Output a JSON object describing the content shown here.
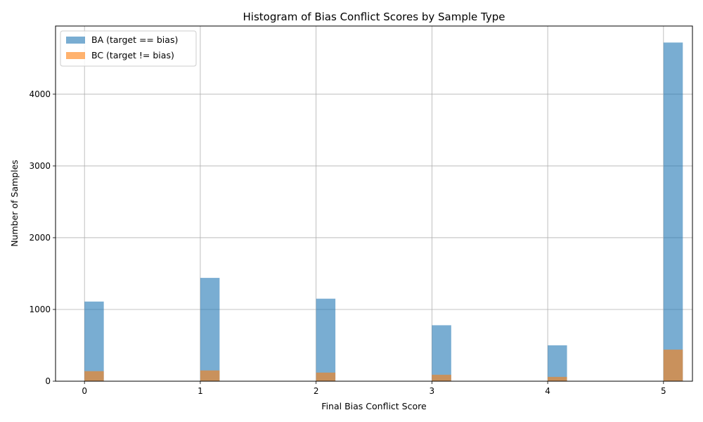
{
  "chart_data": {
    "type": "bar",
    "title": "Histogram of Bias Conflict Scores by Sample Type",
    "xlabel": "Final Bias Conflict Score",
    "ylabel": "Number of Samples",
    "xlim": [
      -0.25,
      5.25
    ],
    "ylim": [
      0,
      4950
    ],
    "xticks": [
      0,
      1,
      2,
      3,
      4,
      5
    ],
    "yticks": [
      0,
      1000,
      2000,
      3000,
      4000
    ],
    "grid": true,
    "legend_position": "top-left",
    "bin_width": 0.1667,
    "categories": [
      0,
      1,
      2,
      3,
      4,
      5
    ],
    "series": [
      {
        "name": "BA (target == bias)",
        "color": "#1f77b4",
        "alpha": 0.6,
        "values": [
          1110,
          1440,
          1150,
          780,
          500,
          4720
        ]
      },
      {
        "name": "BC (target != bias)",
        "color": "#ff7f0e",
        "alpha": 0.6,
        "values": [
          140,
          150,
          120,
          90,
          60,
          440
        ]
      }
    ]
  }
}
